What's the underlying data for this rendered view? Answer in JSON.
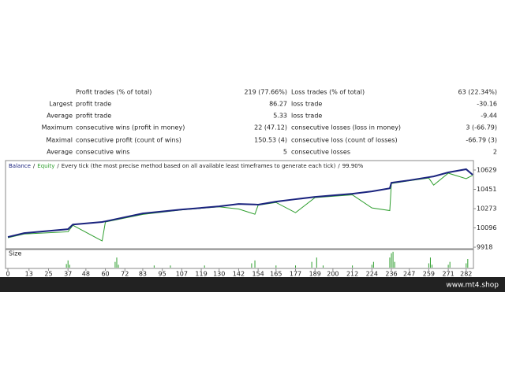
{
  "report": {
    "rows": [
      [
        "",
        "Profit trades (% of total)",
        "219 (77.66%)",
        "Loss trades (% of total)",
        "63 (22.34%)"
      ],
      [
        "Largest",
        "profit trade",
        "86.27",
        "loss trade",
        "-30.16"
      ],
      [
        "Average",
        "profit trade",
        "5.33",
        "loss trade",
        "-9.44"
      ],
      [
        "Maximum",
        "consecutive wins (profit in money)",
        "22 (47.12)",
        "consecutive losses (loss in money)",
        "3 (-66.79)"
      ],
      [
        "Maximal",
        "consecutive profit (count of wins)",
        "150.53 (4)",
        "consecutive loss (count of losses)",
        "-66.79 (3)"
      ],
      [
        "Average",
        "consecutive wins",
        "5",
        "consecutive losses",
        "2"
      ]
    ]
  },
  "chart_data": {
    "type": "line",
    "separator": "/",
    "model": "Every tick (the most precise method based on all available least timeframes to generate each tick)",
    "quality": "99.90%",
    "x": [
      0,
      10,
      37,
      40,
      58,
      60,
      83,
      107,
      130,
      142,
      152,
      154,
      165,
      177,
      189,
      212,
      224,
      235,
      236,
      247,
      259,
      262,
      271,
      282,
      286
    ],
    "series": [
      {
        "name": "Balance",
        "color": "#1a237e",
        "values": [
          10012,
          10048,
          10084,
          10127,
          10150,
          10156,
          10229,
          10265,
          10294,
          10316,
          10312,
          10310,
          10338,
          10360,
          10381,
          10410,
          10432,
          10460,
          10512,
          10534,
          10563,
          10570,
          10607,
          10636,
          10585
        ]
      },
      {
        "name": "Equity",
        "color": "#2e9e2e",
        "values": [
          10005,
          10040,
          10060,
          10120,
          9976,
          10150,
          10220,
          10262,
          10290,
          10270,
          10222,
          10305,
          10330,
          10236,
          10375,
          10400,
          10280,
          10255,
          10505,
          10530,
          10555,
          10490,
          10600,
          10549,
          10580
        ]
      }
    ],
    "xlim": [
      0,
      286
    ],
    "ylim": [
      9911,
      10694
    ],
    "xticks": [
      0,
      13,
      25,
      37,
      48,
      60,
      72,
      83,
      95,
      107,
      119,
      130,
      142,
      154,
      165,
      177,
      189,
      200,
      212,
      224,
      236,
      247,
      259,
      271,
      282
    ],
    "yticks": [
      10629,
      10451,
      10273,
      10096,
      9918
    ],
    "size_panel": {
      "label": "Size",
      "color": "#2e9e2e",
      "ylim": [
        0,
        24
      ],
      "x": [
        36,
        37,
        38,
        66,
        67,
        68,
        90,
        100,
        121,
        150,
        152,
        165,
        177,
        187,
        190,
        194,
        212,
        224,
        225,
        235,
        236,
        237,
        238,
        259,
        260,
        261,
        271,
        272,
        282,
        283
      ],
      "values": [
        5,
        10,
        4,
        8,
        14,
        4,
        3,
        3,
        3,
        6,
        10,
        3,
        3,
        8,
        14,
        3,
        3,
        4,
        8,
        14,
        20,
        22,
        8,
        6,
        14,
        4,
        4,
        8,
        6,
        12
      ]
    }
  },
  "footer": {
    "site": "www.mt4.shop"
  }
}
